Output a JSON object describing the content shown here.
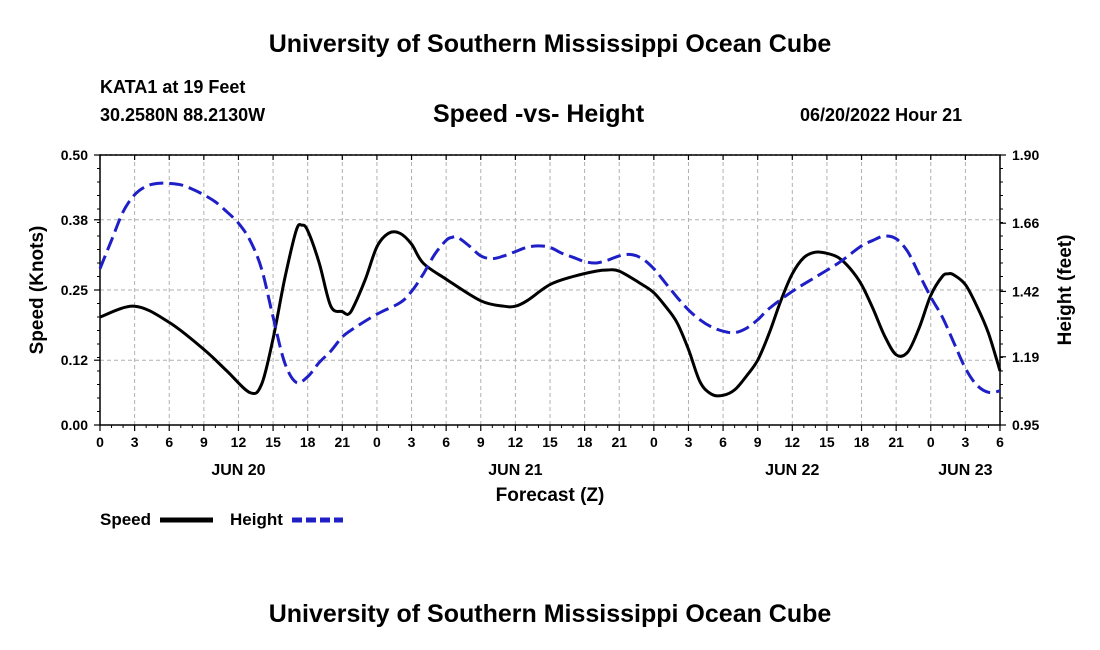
{
  "header": {
    "title": "University of Southern Mississippi Ocean Cube",
    "station_line1": "KATA1 at 19 Feet",
    "station_line2": "30.2580N  88.2130W",
    "timestamp": "06/20/2022 Hour 21"
  },
  "footer": {
    "title": "University of Southern Mississippi Ocean Cube"
  },
  "chart_data": {
    "type": "line",
    "title": "Speed -vs- Height",
    "xlabel": "Forecast (Z)",
    "ylabel_left": "Speed (Knots)",
    "ylabel_right": "Height (feet)",
    "x_hours_range": [
      0,
      78
    ],
    "x_ticks": [
      {
        "h": 0,
        "label": "0"
      },
      {
        "h": 3,
        "label": "3"
      },
      {
        "h": 6,
        "label": "6"
      },
      {
        "h": 9,
        "label": "9"
      },
      {
        "h": 12,
        "label": "12"
      },
      {
        "h": 15,
        "label": "15"
      },
      {
        "h": 18,
        "label": "18"
      },
      {
        "h": 21,
        "label": "21"
      },
      {
        "h": 24,
        "label": "0"
      },
      {
        "h": 27,
        "label": "3"
      },
      {
        "h": 30,
        "label": "6"
      },
      {
        "h": 33,
        "label": "9"
      },
      {
        "h": 36,
        "label": "12"
      },
      {
        "h": 39,
        "label": "15"
      },
      {
        "h": 42,
        "label": "18"
      },
      {
        "h": 45,
        "label": "21"
      },
      {
        "h": 48,
        "label": "0"
      },
      {
        "h": 51,
        "label": "3"
      },
      {
        "h": 54,
        "label": "6"
      },
      {
        "h": 57,
        "label": "9"
      },
      {
        "h": 60,
        "label": "12"
      },
      {
        "h": 63,
        "label": "15"
      },
      {
        "h": 66,
        "label": "18"
      },
      {
        "h": 69,
        "label": "21"
      },
      {
        "h": 72,
        "label": "0"
      },
      {
        "h": 75,
        "label": "3"
      },
      {
        "h": 78,
        "label": "6"
      }
    ],
    "day_labels": [
      {
        "h": 12,
        "label": "JUN 20"
      },
      {
        "h": 36,
        "label": "JUN 21"
      },
      {
        "h": 60,
        "label": "JUN 22"
      },
      {
        "h": 75,
        "label": "JUN 23"
      }
    ],
    "y_left": {
      "range": [
        0,
        0.5
      ],
      "ticks": [
        "0.00",
        "0.12",
        "0.25",
        "0.38",
        "0.50"
      ]
    },
    "y_right": {
      "range": [
        0.95,
        1.9
      ],
      "ticks": [
        "0.95",
        "1.19",
        "1.42",
        "1.66",
        "1.90"
      ]
    },
    "grid": true,
    "legend": {
      "position": "bottom-left"
    },
    "series": [
      {
        "name": "Speed",
        "axis": "left",
        "color": "#000000",
        "style": "solid",
        "x": [
          0,
          3,
          6,
          9,
          11,
          13,
          14,
          15,
          16,
          17,
          17.5,
          18,
          19,
          20,
          21,
          21.5,
          22,
          23,
          24,
          25,
          26,
          27,
          28,
          30,
          33,
          35,
          36,
          37,
          39,
          41,
          43,
          44,
          45,
          47,
          48,
          49,
          50,
          51,
          52,
          53,
          54,
          55,
          56,
          57,
          58,
          59,
          60,
          61,
          62,
          63,
          64,
          65,
          66,
          67,
          68,
          69,
          70,
          71,
          72,
          73,
          73.5,
          74,
          75,
          76,
          77,
          78
        ],
        "values": [
          0.2,
          0.22,
          0.19,
          0.14,
          0.1,
          0.06,
          0.075,
          0.16,
          0.27,
          0.36,
          0.37,
          0.36,
          0.3,
          0.22,
          0.21,
          0.205,
          0.22,
          0.27,
          0.33,
          0.355,
          0.355,
          0.335,
          0.3,
          0.27,
          0.23,
          0.22,
          0.22,
          0.23,
          0.26,
          0.275,
          0.285,
          0.287,
          0.285,
          0.26,
          0.245,
          0.22,
          0.19,
          0.14,
          0.08,
          0.057,
          0.055,
          0.065,
          0.09,
          0.12,
          0.17,
          0.23,
          0.28,
          0.31,
          0.32,
          0.318,
          0.31,
          0.29,
          0.26,
          0.215,
          0.165,
          0.13,
          0.135,
          0.18,
          0.24,
          0.275,
          0.28,
          0.278,
          0.26,
          0.22,
          0.17,
          0.1
        ]
      },
      {
        "name": "Height",
        "axis": "right",
        "color": "#1f1fc7",
        "style": "dashed",
        "x": [
          0,
          1,
          2,
          3,
          4,
          5,
          6,
          7,
          8,
          9,
          10,
          11,
          12,
          13,
          14,
          15,
          16,
          17,
          18,
          19,
          20,
          21,
          22,
          24,
          26,
          27,
          28,
          29,
          30,
          30.5,
          31,
          32,
          33,
          34,
          35,
          36,
          37,
          38,
          39,
          40,
          41,
          42,
          43,
          44,
          45,
          46,
          47,
          48,
          49,
          50,
          51,
          52,
          53,
          54,
          55,
          56,
          57,
          58,
          60,
          62,
          64,
          65,
          66,
          67,
          68,
          69,
          70,
          71,
          72,
          73,
          74,
          75,
          76,
          77,
          78
        ],
        "values": [
          1.5,
          1.6,
          1.7,
          1.76,
          1.79,
          1.8,
          1.8,
          1.795,
          1.78,
          1.76,
          1.735,
          1.7,
          1.66,
          1.6,
          1.5,
          1.33,
          1.17,
          1.1,
          1.12,
          1.17,
          1.21,
          1.26,
          1.29,
          1.34,
          1.38,
          1.42,
          1.48,
          1.55,
          1.6,
          1.61,
          1.61,
          1.58,
          1.545,
          1.535,
          1.545,
          1.56,
          1.575,
          1.58,
          1.575,
          1.555,
          1.54,
          1.525,
          1.52,
          1.53,
          1.545,
          1.55,
          1.535,
          1.5,
          1.45,
          1.4,
          1.355,
          1.32,
          1.295,
          1.28,
          1.275,
          1.29,
          1.32,
          1.36,
          1.42,
          1.47,
          1.52,
          1.55,
          1.58,
          1.6,
          1.615,
          1.605,
          1.56,
          1.48,
          1.4,
          1.33,
          1.24,
          1.15,
          1.09,
          1.065,
          1.07
        ]
      }
    ]
  }
}
